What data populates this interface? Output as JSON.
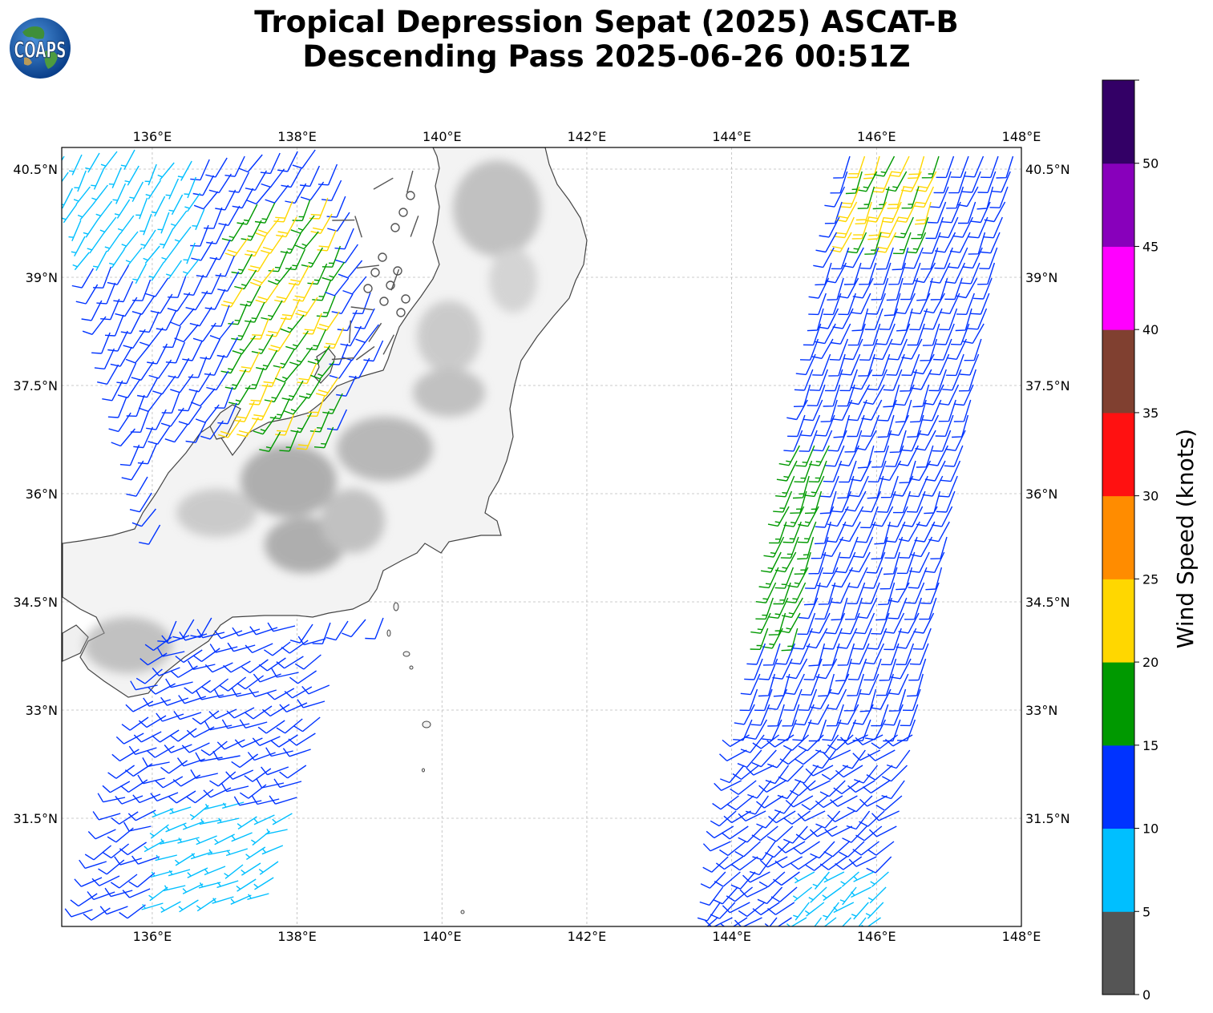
{
  "title": {
    "line1": "Tropical Depression Sepat (2025) ASCAT-B",
    "line2": "Descending Pass 2025-06-26 00:51Z"
  },
  "logo": {
    "text": "COAPS"
  },
  "map": {
    "lon_range": [
      134.75,
      148.0
    ],
    "lat_range": [
      30.0,
      40.8
    ],
    "lon_ticks": [
      "136°E",
      "138°E",
      "140°E",
      "142°E",
      "144°E",
      "146°E",
      "148°E"
    ],
    "lat_ticks": [
      "40.5°N",
      "39°N",
      "37.5°N",
      "36°N",
      "34.5°N",
      "33°N",
      "31.5°N"
    ],
    "gridlines": true
  },
  "colorbar": {
    "label": "Wind Speed (knots)",
    "ticks": [
      "0",
      "5",
      "10",
      "15",
      "20",
      "25",
      "30",
      "35",
      "40",
      "45",
      "50"
    ],
    "colors": [
      "#555555",
      "#00bfff",
      "#0033ff",
      "#009900",
      "#ffd700",
      "#ff8c00",
      "#ff1111",
      "#804030",
      "#ff00ff",
      "#8800bb",
      "#330066"
    ]
  }
}
